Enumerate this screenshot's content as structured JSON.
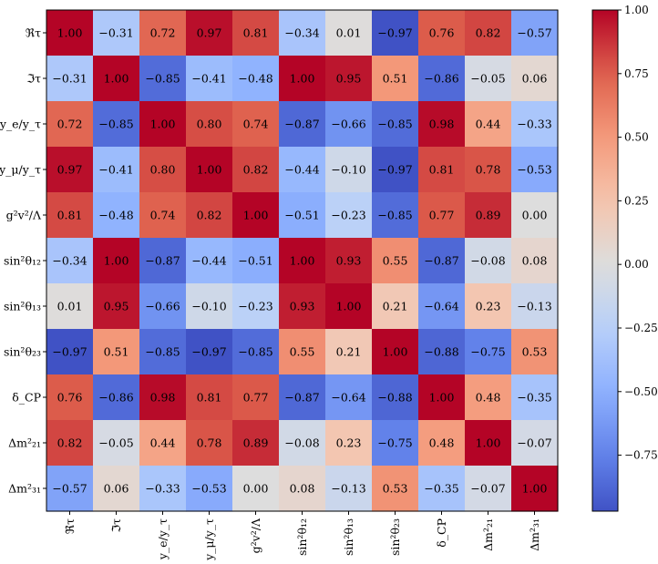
{
  "chart_data": {
    "type": "heatmap",
    "title": "",
    "colormap": "coolwarm",
    "color_range": [
      -1.0,
      1.0
    ],
    "labels": [
      "ℜτ",
      "ℑτ",
      "y_e/y_τ",
      "y_μ/y_τ",
      "g²v²/Λ",
      "sin²θ₁₂",
      "sin²θ₁₃",
      "sin²θ₂₃",
      "δ_CP",
      "Δm²₂₁",
      "Δm²₃₁"
    ],
    "matrix": [
      [
        1.0,
        -0.31,
        0.72,
        0.97,
        0.81,
        -0.34,
        0.01,
        -0.97,
        0.76,
        0.82,
        -0.57
      ],
      [
        -0.31,
        1.0,
        -0.85,
        -0.41,
        -0.48,
        1.0,
        0.95,
        0.51,
        -0.86,
        -0.05,
        0.06
      ],
      [
        0.72,
        -0.85,
        1.0,
        0.8,
        0.74,
        -0.87,
        -0.66,
        -0.85,
        0.98,
        0.44,
        -0.33
      ],
      [
        0.97,
        -0.41,
        0.8,
        1.0,
        0.82,
        -0.44,
        -0.1,
        -0.97,
        0.81,
        0.78,
        -0.53
      ],
      [
        0.81,
        -0.48,
        0.74,
        0.82,
        1.0,
        -0.51,
        -0.23,
        -0.85,
        0.77,
        0.89,
        0.0
      ],
      [
        -0.34,
        1.0,
        -0.87,
        -0.44,
        -0.51,
        1.0,
        0.93,
        0.55,
        -0.87,
        -0.08,
        0.08
      ],
      [
        0.01,
        0.95,
        -0.66,
        -0.1,
        -0.23,
        0.93,
        1.0,
        0.21,
        -0.64,
        0.23,
        -0.13
      ],
      [
        -0.97,
        0.51,
        -0.85,
        -0.97,
        -0.85,
        0.55,
        0.21,
        1.0,
        -0.88,
        -0.75,
        0.53
      ],
      [
        0.76,
        -0.86,
        0.98,
        0.81,
        0.77,
        -0.87,
        -0.64,
        -0.88,
        1.0,
        0.48,
        -0.35
      ],
      [
        0.82,
        -0.05,
        0.44,
        0.78,
        0.89,
        -0.08,
        0.23,
        -0.75,
        0.48,
        1.0,
        -0.07
      ],
      [
        -0.57,
        0.06,
        -0.33,
        -0.53,
        0.0,
        0.08,
        -0.13,
        0.53,
        -0.35,
        -0.07,
        1.0
      ]
    ],
    "colorbar": {
      "range": [
        -0.97,
        1.0
      ],
      "ticks": [
        1.0,
        0.75,
        0.5,
        0.25,
        0.0,
        -0.25,
        -0.5,
        -0.75
      ],
      "tick_labels": [
        "1.00",
        "0.75",
        "0.50",
        "0.25",
        "0.00",
        "−0.25",
        "−0.50",
        "−0.75"
      ]
    },
    "xlabel": "",
    "ylabel": "",
    "grid": false,
    "legend": "colorbar-right"
  }
}
